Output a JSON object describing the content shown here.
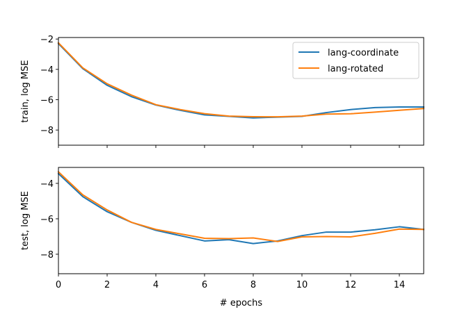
{
  "chart_data": [
    {
      "type": "line",
      "title": "",
      "xlabel": "",
      "ylabel": "train, log MSE",
      "xlim": [
        0,
        15
      ],
      "ylim": [
        -9.0,
        -1.9
      ],
      "xticks": [
        0,
        2,
        4,
        6,
        8,
        10,
        12,
        14
      ],
      "yticks": [
        -8,
        -6,
        -4,
        -2
      ],
      "show_xtick_labels": false,
      "grid": false,
      "legend": {
        "placement": "top-right"
      },
      "x": [
        0,
        1,
        2,
        3,
        4,
        5,
        6,
        7,
        8,
        9,
        10,
        11,
        12,
        13,
        14,
        15
      ],
      "series": [
        {
          "name": "lang-coordinate",
          "color": "#1f77b4",
          "values": [
            -2.3,
            -3.95,
            -5.05,
            -5.8,
            -6.35,
            -6.7,
            -7.0,
            -7.1,
            -7.2,
            -7.15,
            -7.1,
            -6.85,
            -6.65,
            -6.52,
            -6.48,
            -6.48
          ]
        },
        {
          "name": "lang-rotated",
          "color": "#ff7f0e",
          "values": [
            -2.25,
            -3.9,
            -4.95,
            -5.7,
            -6.33,
            -6.65,
            -6.92,
            -7.08,
            -7.12,
            -7.13,
            -7.08,
            -6.95,
            -6.93,
            -6.82,
            -6.7,
            -6.58
          ]
        }
      ]
    },
    {
      "type": "line",
      "title": "",
      "xlabel": "# epochs",
      "ylabel": "test, log MSE",
      "xlim": [
        0,
        15
      ],
      "ylim": [
        -9.1,
        -3.1
      ],
      "xticks": [
        0,
        2,
        4,
        6,
        8,
        10,
        12,
        14
      ],
      "yticks": [
        -8,
        -6,
        -4
      ],
      "show_xtick_labels": true,
      "grid": false,
      "x": [
        0,
        1,
        2,
        3,
        4,
        5,
        6,
        7,
        8,
        9,
        10,
        11,
        12,
        13,
        14,
        15
      ],
      "series": [
        {
          "name": "lang-coordinate",
          "color": "#1f77b4",
          "values": [
            -3.45,
            -4.75,
            -5.6,
            -6.2,
            -6.65,
            -6.95,
            -7.25,
            -7.18,
            -7.4,
            -7.25,
            -6.95,
            -6.75,
            -6.75,
            -6.62,
            -6.45,
            -6.6
          ]
        },
        {
          "name": "lang-rotated",
          "color": "#ff7f0e",
          "values": [
            -3.35,
            -4.65,
            -5.5,
            -6.2,
            -6.6,
            -6.85,
            -7.1,
            -7.12,
            -7.08,
            -7.28,
            -7.02,
            -7.0,
            -7.02,
            -6.82,
            -6.58,
            -6.6
          ]
        }
      ]
    }
  ]
}
